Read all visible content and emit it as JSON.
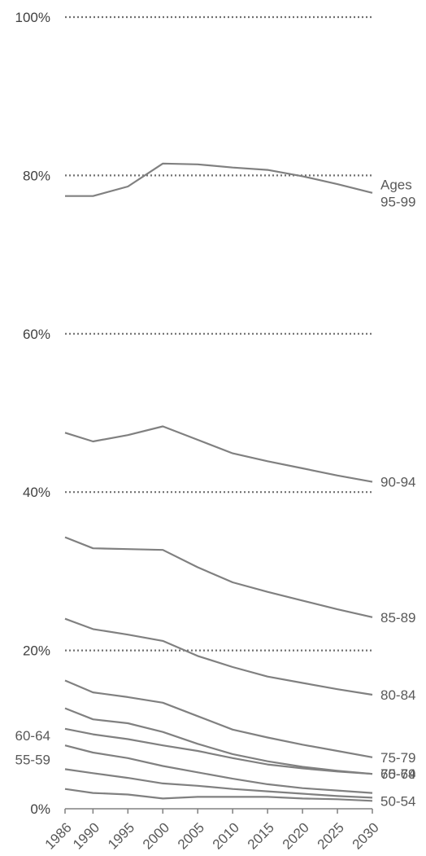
{
  "chart_data": {
    "type": "line",
    "title": "",
    "xlabel": "",
    "ylabel": "",
    "ylim": [
      0,
      100
    ],
    "y_ticks": [
      {
        "value": 0,
        "label": "0%"
      },
      {
        "value": 20,
        "label": "20%"
      },
      {
        "value": 40,
        "label": "40%"
      },
      {
        "value": 60,
        "label": "60%"
      },
      {
        "value": 80,
        "label": "80%"
      },
      {
        "value": 100,
        "label": "100%"
      }
    ],
    "x": [
      1986,
      1990,
      1995,
      2000,
      2005,
      2010,
      2015,
      2020,
      2025,
      2030
    ],
    "x_tick_labels": [
      "1986",
      "1990",
      "1995",
      "2000",
      "2005",
      "2010",
      "2015",
      "2020",
      "2025",
      "2030"
    ],
    "gridlines": {
      "style": "dotted",
      "values": [
        20,
        40,
        60,
        80,
        100
      ]
    },
    "line_color": "#808080",
    "series": [
      {
        "label_lines": [
          "50-54"
        ],
        "label_side": "right",
        "values": [
          2.5,
          2.0,
          1.8,
          1.3,
          1.5,
          1.5,
          1.5,
          1.3,
          1.2,
          1.0
        ]
      },
      {
        "label_lines": [
          "55-59"
        ],
        "label_side": "left",
        "values": [
          5.0,
          4.5,
          3.9,
          3.2,
          2.9,
          2.5,
          2.2,
          1.9,
          1.6,
          1.4
        ]
      },
      {
        "label_lines": [
          "60-64"
        ],
        "label_side": "left",
        "values": [
          8.0,
          7.1,
          6.4,
          5.4,
          4.6,
          3.8,
          3.1,
          2.6,
          2.3,
          2.0
        ]
      },
      {
        "label_lines": [
          "65-69"
        ],
        "label_side": "right",
        "values": [
          10.1,
          9.4,
          8.8,
          8.0,
          7.3,
          6.4,
          5.6,
          5.1,
          4.7,
          4.4
        ]
      },
      {
        "label_lines": [
          "70-74"
        ],
        "label_side": "right",
        "values": [
          12.7,
          11.3,
          10.8,
          9.7,
          8.2,
          6.9,
          6.0,
          5.3,
          4.8,
          4.4
        ]
      },
      {
        "label_lines": [
          "75-79"
        ],
        "label_side": "right",
        "values": [
          16.2,
          14.7,
          14.1,
          13.4,
          11.7,
          10.0,
          9.0,
          8.1,
          7.3,
          6.5
        ]
      },
      {
        "label_lines": [
          "80-84"
        ],
        "label_side": "right",
        "values": [
          24.0,
          22.7,
          22.0,
          21.2,
          19.3,
          17.9,
          16.7,
          15.9,
          15.1,
          14.4
        ]
      },
      {
        "label_lines": [
          "85-89"
        ],
        "label_side": "right",
        "values": [
          34.3,
          32.9,
          32.8,
          32.7,
          30.5,
          28.6,
          27.4,
          26.3,
          25.2,
          24.2
        ]
      },
      {
        "label_lines": [
          "90-94"
        ],
        "label_side": "right",
        "values": [
          47.5,
          46.4,
          47.2,
          48.3,
          46.6,
          44.9,
          43.9,
          43.0,
          42.1,
          41.3
        ]
      },
      {
        "label_lines": [
          "Ages",
          "95-99"
        ],
        "label_side": "right",
        "values": [
          77.4,
          77.4,
          78.6,
          81.5,
          81.4,
          81.0,
          80.7,
          79.9,
          78.9,
          77.8
        ]
      }
    ]
  }
}
